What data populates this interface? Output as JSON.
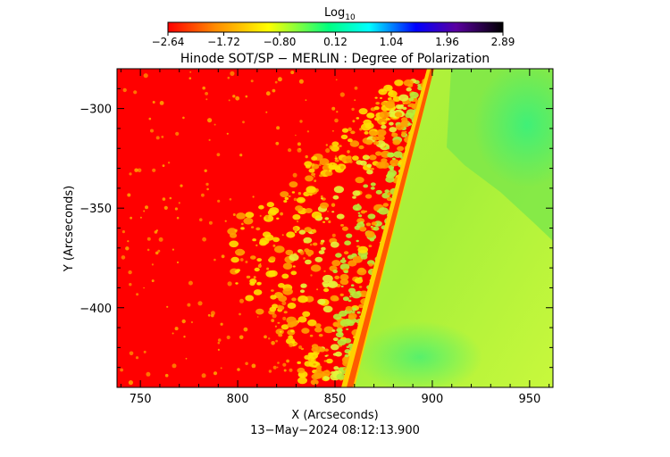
{
  "chart_data": {
    "type": "heatmap",
    "title": "Hinode SOT/SP − MERLIN : Degree of Polarization",
    "xlabel": "X (Arcseconds)",
    "ylabel": "Y (Arcseconds)",
    "date_label": "13−May−2024 08:12:13.900",
    "xlim": [
      738,
      962
    ],
    "ylim": [
      -440,
      -280
    ],
    "x_ticks": [
      {
        "value": 750,
        "label": "750"
      },
      {
        "value": 800,
        "label": "800"
      },
      {
        "value": 850,
        "label": "850"
      },
      {
        "value": 900,
        "label": "900"
      },
      {
        "value": 950,
        "label": "950"
      }
    ],
    "y_ticks": [
      {
        "value": -300,
        "label": "−300"
      },
      {
        "value": -350,
        "label": "−350"
      },
      {
        "value": -400,
        "label": "−400"
      }
    ],
    "colorbar": {
      "label_main": "Log",
      "label_sub": "10",
      "range": [
        -2.64,
        2.89
      ],
      "tick_labels": [
        "−2.64",
        "−1.72",
        "−0.80",
        "0.12",
        "1.04",
        "1.96",
        "2.89"
      ],
      "colors": [
        "#ff0000",
        "#ff8a00",
        "#ffff00",
        "#00ff80",
        "#00ffff",
        "#0000ff",
        "#5a00a0",
        "#000000"
      ]
    },
    "field": {
      "background_value": -2.64,
      "limb_x_at_top": 893,
      "limb_x_at_bottom": 850,
      "limb_band_value": -1.4,
      "disk_value": -0.55,
      "inner_disk_value": -0.2,
      "active_region_values": [
        -1.8,
        -1.0,
        -0.6
      ]
    }
  }
}
